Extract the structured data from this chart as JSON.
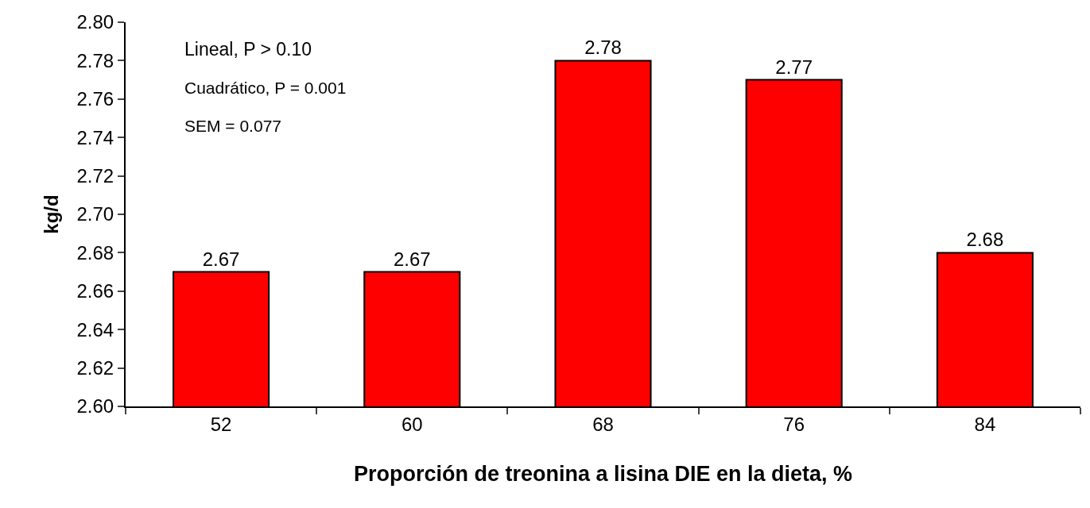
{
  "chart_data": {
    "type": "bar",
    "xlabel": "Proporción de treonina a lisina DIE en la dieta, %",
    "ylabel": "kg/d",
    "categories": [
      "52",
      "60",
      "68",
      "76",
      "84"
    ],
    "values": [
      2.67,
      2.67,
      2.78,
      2.77,
      2.68
    ],
    "color": "#ff0000",
    "ylim": [
      2.6,
      2.8
    ],
    "yticks": [
      "2.60",
      "2.62",
      "2.64",
      "2.66",
      "2.68",
      "2.70",
      "2.72",
      "2.74",
      "2.76",
      "2.78",
      "2.80"
    ],
    "grid": false,
    "data_labels": true,
    "annotations": [
      "Lineal, P > 0.10",
      "Cuadrático, P = 0.001",
      "SEM = 0.077"
    ]
  }
}
